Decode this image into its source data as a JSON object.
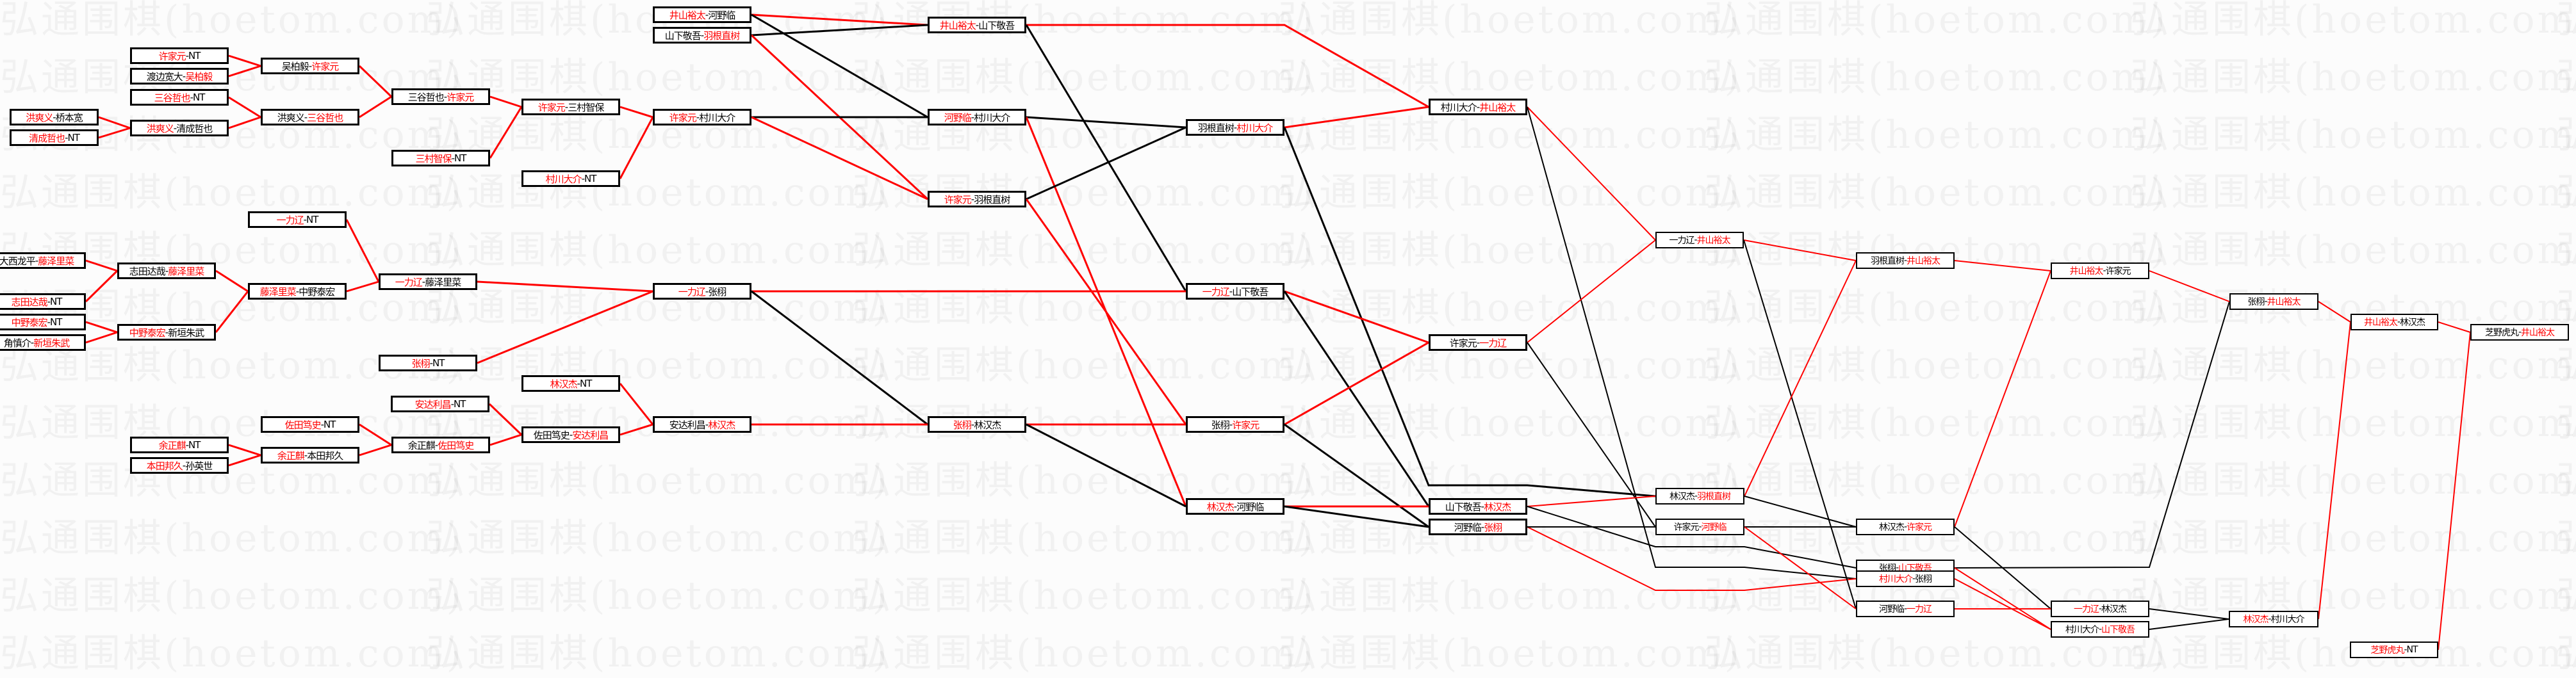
{
  "watermark": "弘通围棋(hoetom.com)",
  "colors": {
    "winner": "#ff0000",
    "loser": "#000000"
  },
  "boxes": [
    {
      "id": "b1",
      "a": "许家元",
      "b": "NT",
      "winner": "a"
    },
    {
      "id": "b2",
      "a": "渡边宽大",
      "b": "吴柏毅",
      "winner": "b"
    },
    {
      "id": "b3",
      "a": "三谷哲也",
      "b": "NT",
      "winner": "a"
    },
    {
      "id": "b4",
      "a": "洪爽义",
      "b": "桥本宽",
      "winner": "a"
    },
    {
      "id": "b5",
      "a": "清成哲也",
      "b": "NT",
      "winner": "a"
    },
    {
      "id": "b6",
      "a": "洪爽义",
      "b": "清成哲也",
      "winner": "a"
    },
    {
      "id": "b7",
      "a": "吴柏毅",
      "b": "许家元",
      "winner": "b"
    },
    {
      "id": "b8",
      "a": "洪爽义",
      "b": "三谷哲也",
      "winner": "b"
    },
    {
      "id": "b9",
      "a": "三谷哲也",
      "b": "许家元",
      "winner": "b"
    },
    {
      "id": "b10",
      "a": "三村智保",
      "b": "NT",
      "winner": "a"
    },
    {
      "id": "b11",
      "a": "许家元",
      "b": "三村智保",
      "winner": "a"
    },
    {
      "id": "b12",
      "a": "村川大介",
      "b": "NT",
      "winner": "a"
    },
    {
      "id": "b13",
      "a": "许家元",
      "b": "村川大介",
      "winner": "a"
    },
    {
      "id": "b14",
      "a": "井山裕太",
      "b": "河野临",
      "winner": "a"
    },
    {
      "id": "b15",
      "a": "山下敬吾",
      "b": "羽根直树",
      "winner": "b"
    },
    {
      "id": "b16",
      "a": "大西龙平",
      "b": "藤泽里菜",
      "winner": "b"
    },
    {
      "id": "b17",
      "a": "志田达哉",
      "b": "NT",
      "winner": "a"
    },
    {
      "id": "b18",
      "a": "中野泰宏",
      "b": "NT",
      "winner": "a"
    },
    {
      "id": "b19",
      "a": "角慎介",
      "b": "新垣朱武",
      "winner": "b"
    },
    {
      "id": "b20",
      "a": "志田达哉",
      "b": "藤泽里菜",
      "winner": "b"
    },
    {
      "id": "b21",
      "a": "中野泰宏",
      "b": "新垣朱武",
      "winner": "a"
    },
    {
      "id": "b22",
      "a": "藤泽里菜",
      "b": "中野泰宏",
      "winner": "a"
    },
    {
      "id": "b23",
      "a": "一力辽",
      "b": "NT",
      "winner": "a"
    },
    {
      "id": "b24",
      "a": "一力辽",
      "b": "藤泽里菜",
      "winner": "a"
    },
    {
      "id": "b25",
      "a": "张栩",
      "b": "NT",
      "winner": "a"
    },
    {
      "id": "b26",
      "a": "一力辽",
      "b": "张栩",
      "winner": "a"
    },
    {
      "id": "b27",
      "a": "林汉杰",
      "b": "NT",
      "winner": "a"
    },
    {
      "id": "b28",
      "a": "安达利昌",
      "b": "NT",
      "winner": "a"
    },
    {
      "id": "b29",
      "a": "安达利昌",
      "b": "林汉杰",
      "winner": "b"
    },
    {
      "id": "b30",
      "a": "佐田笃史",
      "b": "NT",
      "winner": "a"
    },
    {
      "id": "b31",
      "a": "余正麒",
      "b": "NT",
      "winner": "a"
    },
    {
      "id": "b32",
      "a": "本田邦久",
      "b": "孙英世",
      "winner": "a"
    },
    {
      "id": "b33",
      "a": "余正麒",
      "b": "本田邦久",
      "winner": "a"
    },
    {
      "id": "b34",
      "a": "余正麒",
      "b": "佐田笃史",
      "winner": "b"
    },
    {
      "id": "b35",
      "a": "佐田笃史",
      "b": "安达利昌",
      "winner": "b"
    },
    {
      "id": "b36",
      "a": "井山裕太",
      "b": "山下敬吾",
      "winner": "a"
    },
    {
      "id": "b37",
      "a": "河野临",
      "b": "村川大介",
      "winner": "a"
    },
    {
      "id": "b38",
      "a": "许家元",
      "b": "羽根直树",
      "winner": "a"
    },
    {
      "id": "b39",
      "a": "羽根直树",
      "b": "村川大介",
      "winner": "b"
    },
    {
      "id": "b40",
      "a": "一力辽",
      "b": "山下敬吾",
      "winner": "a"
    },
    {
      "id": "b41",
      "a": "张栩",
      "b": "林汉杰",
      "winner": "a"
    },
    {
      "id": "b42",
      "a": "张栩",
      "b": "许家元",
      "winner": "b"
    },
    {
      "id": "b43",
      "a": "林汉杰",
      "b": "河野临",
      "winner": "a"
    },
    {
      "id": "b44",
      "a": "村川大介",
      "b": "井山裕太",
      "winner": "b"
    },
    {
      "id": "b45",
      "a": "许家元",
      "b": "一力辽",
      "winner": "b"
    },
    {
      "id": "b46",
      "a": "山下敬吾",
      "b": "林汉杰",
      "winner": "b"
    },
    {
      "id": "b47",
      "a": "河野临",
      "b": "张栩",
      "winner": "b"
    },
    {
      "id": "b48",
      "a": "一力辽",
      "b": "井山裕太",
      "winner": "b"
    },
    {
      "id": "b49",
      "a": "林汉杰",
      "b": "羽根直树",
      "winner": "b"
    },
    {
      "id": "b50",
      "a": "许家元",
      "b": "河野临",
      "winner": "b"
    },
    {
      "id": "b51",
      "a": "林汉杰",
      "b": "许家元",
      "winner": "b"
    },
    {
      "id": "b52",
      "a": "张栩",
      "b": "山下敬吾",
      "winner": "b"
    },
    {
      "id": "b53",
      "a": "村川大介",
      "b": "张栩",
      "winner": "a"
    },
    {
      "id": "b54",
      "a": "河野临",
      "b": "一力辽",
      "winner": "b"
    },
    {
      "id": "b55",
      "a": "一力辽",
      "b": "林汉杰",
      "winner": "a"
    },
    {
      "id": "b56",
      "a": "村川大介",
      "b": "山下敬吾",
      "winner": "b"
    },
    {
      "id": "b57",
      "a": "羽根直树",
      "b": "井山裕太",
      "winner": "b"
    },
    {
      "id": "b58",
      "a": "井山裕太",
      "b": "许家元",
      "winner": "a"
    },
    {
      "id": "b59",
      "a": "张栩",
      "b": "井山裕太",
      "winner": "b"
    },
    {
      "id": "b60",
      "a": "井山裕太",
      "b": "林汉杰",
      "winner": "a"
    },
    {
      "id": "b61",
      "a": "芝野虎丸",
      "b": "井山裕太",
      "winner": "b"
    },
    {
      "id": "b62",
      "a": "林汉杰",
      "b": "村川大介",
      "winner": "a"
    },
    {
      "id": "b63",
      "a": "芝野虎丸",
      "b": "NT",
      "winner": "a"
    }
  ],
  "edges": [
    [
      "b4",
      "b6",
      "win"
    ],
    [
      "b5",
      "b6",
      "win"
    ],
    [
      "b1",
      "b7",
      "win"
    ],
    [
      "b2",
      "b7",
      "win"
    ],
    [
      "b3",
      "b8",
      "win"
    ],
    [
      "b6",
      "b8",
      "win"
    ],
    [
      "b7",
      "b9",
      "win"
    ],
    [
      "b8",
      "b9",
      "win"
    ],
    [
      "b9",
      "b11",
      "win"
    ],
    [
      "b10",
      "b11",
      "win"
    ],
    [
      "b11",
      "b13",
      "win"
    ],
    [
      "b12",
      "b13",
      "win"
    ],
    [
      "b16",
      "b20",
      "win"
    ],
    [
      "b17",
      "b20",
      "win"
    ],
    [
      "b18",
      "b21",
      "win"
    ],
    [
      "b19",
      "b21",
      "win"
    ],
    [
      "b20",
      "b22",
      "win"
    ],
    [
      "b21",
      "b22",
      "win"
    ],
    [
      "b23",
      "b24",
      "win"
    ],
    [
      "b22",
      "b24",
      "win"
    ],
    [
      "b24",
      "b26",
      "win"
    ],
    [
      "b25",
      "b26",
      "win"
    ],
    [
      "b31",
      "b33",
      "win"
    ],
    [
      "b32",
      "b33",
      "win"
    ],
    [
      "b30",
      "b34",
      "win"
    ],
    [
      "b33",
      "b34",
      "win"
    ],
    [
      "b28",
      "b35",
      "win"
    ],
    [
      "b34",
      "b35",
      "win"
    ],
    [
      "b27",
      "b29",
      "win"
    ],
    [
      "b35",
      "b29",
      "win"
    ],
    [
      "b14",
      "b36",
      "win"
    ],
    [
      "b14",
      "b37",
      "loss"
    ],
    [
      "b15",
      "b36",
      "loss"
    ],
    [
      "b15",
      "b38",
      "win"
    ],
    [
      "b13",
      "b37",
      "loss"
    ],
    [
      "b13",
      "b38",
      "win"
    ],
    [
      "b36",
      "b44",
      "win"
    ],
    [
      "b36",
      "b40",
      "loss"
    ],
    [
      "b37",
      "b39",
      "loss"
    ],
    [
      "b37",
      "b43",
      "win"
    ],
    [
      "b38",
      "b39",
      "loss"
    ],
    [
      "b38",
      "b42",
      "win"
    ],
    [
      "b26",
      "b40",
      "win"
    ],
    [
      "b26",
      "b41",
      "loss"
    ],
    [
      "b29",
      "b41",
      "win"
    ],
    [
      "b41",
      "b42",
      "win"
    ],
    [
      "b41",
      "b43",
      "loss"
    ],
    [
      "b39",
      "b44",
      "win"
    ],
    [
      "b39",
      "b49",
      "loss"
    ],
    [
      "b40",
      "b45",
      "win"
    ],
    [
      "b40",
      "b46",
      "loss"
    ],
    [
      "b42",
      "b45",
      "win"
    ],
    [
      "b42",
      "b47",
      "loss"
    ],
    [
      "b43",
      "b46",
      "win"
    ],
    [
      "b43",
      "b47",
      "loss"
    ],
    [
      "b44",
      "b48",
      "win"
    ],
    [
      "b44",
      "b53",
      "loss"
    ],
    [
      "b45",
      "b48",
      "win"
    ],
    [
      "b45",
      "b50",
      "loss"
    ],
    [
      "b46",
      "b49",
      "win"
    ],
    [
      "b46",
      "b52",
      "loss"
    ],
    [
      "b47",
      "b53",
      "win"
    ],
    [
      "b47",
      "b50",
      "loss"
    ],
    [
      "b48",
      "b57",
      "win"
    ],
    [
      "b48",
      "b54",
      "loss"
    ],
    [
      "b49",
      "b57",
      "win"
    ],
    [
      "b49",
      "b51",
      "loss"
    ],
    [
      "b50",
      "b51",
      "loss"
    ],
    [
      "b50",
      "b54",
      "win"
    ],
    [
      "b51",
      "b58",
      "win"
    ],
    [
      "b51",
      "b55",
      "loss"
    ],
    [
      "b52",
      "b59",
      "loss"
    ],
    [
      "b52",
      "b56",
      "win"
    ],
    [
      "b53",
      "b56",
      "win"
    ],
    [
      "b54",
      "b55",
      "win"
    ],
    [
      "b57",
      "b58",
      "win"
    ],
    [
      "b55",
      "b62",
      "loss"
    ],
    [
      "b56",
      "b62",
      "loss"
    ],
    [
      "b58",
      "b59",
      "win"
    ],
    [
      "b59",
      "b60",
      "win"
    ],
    [
      "b62",
      "b60",
      "win"
    ],
    [
      "b60",
      "b61",
      "win"
    ],
    [
      "b63",
      "b61",
      "win"
    ]
  ]
}
